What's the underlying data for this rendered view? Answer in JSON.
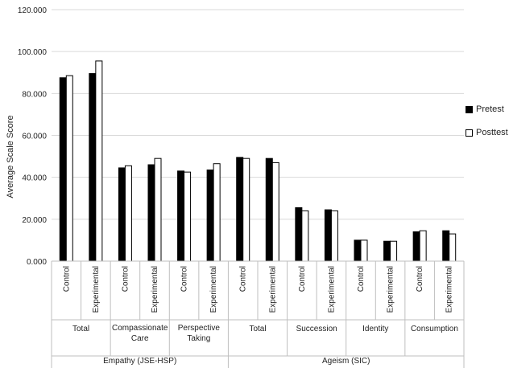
{
  "chart_data": {
    "type": "bar",
    "ylabel": "Average Scale Score",
    "ylim": [
      0,
      120
    ],
    "yticks": [
      "0.000",
      "20.000",
      "40.000",
      "60.000",
      "80.000",
      "100.000",
      "120.000"
    ],
    "grid": true,
    "legend_position": "right",
    "groups": [
      {
        "name": "Empathy (JSE-HSP)",
        "subgroups": [
          {
            "name": "Total",
            "categories": [
              "Control",
              "Experimental"
            ]
          },
          {
            "name": "Compassionate Care",
            "categories": [
              "Control",
              "Experimental"
            ]
          },
          {
            "name": "Perspective Taking",
            "categories": [
              "Control",
              "Experimental"
            ]
          }
        ]
      },
      {
        "name": "Ageism (SIC)",
        "subgroups": [
          {
            "name": "Total",
            "categories": [
              "Control",
              "Experimental"
            ]
          },
          {
            "name": "Succession",
            "categories": [
              "Control",
              "Experimental"
            ]
          },
          {
            "name": "Identity",
            "categories": [
              "Control",
              "Experimental"
            ]
          },
          {
            "name": "Consumption",
            "categories": [
              "Control",
              "Experimental"
            ]
          }
        ]
      }
    ],
    "series": [
      {
        "name": "Pretest",
        "color": "#000000",
        "values": [
          87.5,
          89.5,
          44.5,
          46.0,
          43.0,
          43.5,
          49.5,
          49.0,
          25.5,
          24.5,
          10.0,
          9.5,
          14.0,
          14.5
        ]
      },
      {
        "name": "Posttest",
        "color": "#ffffff",
        "values": [
          88.5,
          95.5,
          45.5,
          49.0,
          42.5,
          46.5,
          49.0,
          47.0,
          24.0,
          24.0,
          10.0,
          9.5,
          14.5,
          13.0
        ]
      }
    ]
  }
}
